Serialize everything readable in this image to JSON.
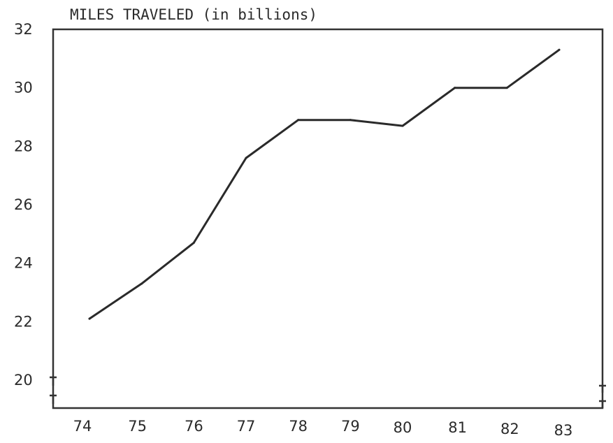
{
  "chart_data": {
    "type": "line",
    "title": "MILES TRAVELED (in billions)",
    "xlabel": "",
    "ylabel": "",
    "x": [
      "74",
      "75",
      "76",
      "77",
      "78",
      "79",
      "80",
      "81",
      "82",
      "83"
    ],
    "series": [
      {
        "values": [
          22.1,
          23.3,
          24.7,
          27.6,
          28.9,
          28.9,
          28.7,
          30.0,
          30.0,
          31.3
        ]
      }
    ],
    "ylim": [
      20,
      32
    ],
    "yticks": [
      "20",
      "22",
      "24",
      "26",
      "28",
      "30",
      "32"
    ],
    "grid": false,
    "axis_break_marks": true
  }
}
